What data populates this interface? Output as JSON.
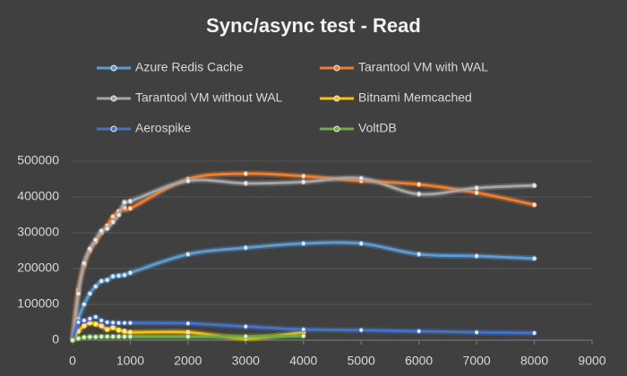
{
  "chart_data": {
    "type": "line",
    "title": "Sync/async test - Read",
    "x": [
      0,
      100,
      200,
      300,
      400,
      500,
      600,
      700,
      800,
      900,
      1000,
      2000,
      3000,
      4000,
      5000,
      6000,
      7000,
      8000
    ],
    "series": [
      {
        "name": "Azure Redis Cache",
        "color": "#5b9bd5",
        "values": [
          0,
          60000,
          100000,
          130000,
          150000,
          165000,
          168000,
          178000,
          180000,
          182000,
          188000,
          240000,
          258000,
          270000,
          270000,
          240000,
          235000,
          228000
        ]
      },
      {
        "name": "Tarantool VM with WAL",
        "color": "#ed7d31",
        "values": [
          0,
          140000,
          210000,
          250000,
          275000,
          300000,
          320000,
          345000,
          360000,
          370000,
          368000,
          450000,
          465000,
          458000,
          445000,
          435000,
          412000,
          378000
        ]
      },
      {
        "name": "Tarantool VM without WAL",
        "color": "#a5a5a5",
        "values": [
          0,
          130000,
          215000,
          255000,
          280000,
          305000,
          312000,
          330000,
          350000,
          385000,
          388000,
          445000,
          438000,
          442000,
          452000,
          408000,
          425000,
          432000
        ]
      },
      {
        "name": "Bitnami Memcached",
        "color": "#ffc000",
        "values": [
          0,
          25000,
          40000,
          48000,
          45000,
          40000,
          30000,
          35000,
          28000,
          25000,
          22000,
          22000,
          5000,
          22000,
          null,
          null,
          null,
          null
        ]
      },
      {
        "name": "Aerospike",
        "color": "#4472c4",
        "values": [
          0,
          50000,
          55000,
          60000,
          65000,
          55000,
          50000,
          49000,
          48000,
          48000,
          48000,
          47000,
          38000,
          30000,
          28000,
          25000,
          22000,
          20000
        ]
      },
      {
        "name": "VoltDB",
        "color": "#70ad47",
        "values": [
          0,
          5000,
          8000,
          9000,
          9000,
          10000,
          10000,
          10000,
          10000,
          10000,
          10000,
          10000,
          10000,
          12000,
          null,
          null,
          null,
          null
        ]
      }
    ],
    "xlim": [
      0,
      9000
    ],
    "xticks": [
      0,
      1000,
      2000,
      3000,
      4000,
      5000,
      6000,
      7000,
      8000,
      9000
    ],
    "ylim": [
      0,
      500000
    ],
    "yticks": [
      0,
      100000,
      200000,
      300000,
      400000,
      500000
    ],
    "grid": true,
    "legend": "top"
  }
}
